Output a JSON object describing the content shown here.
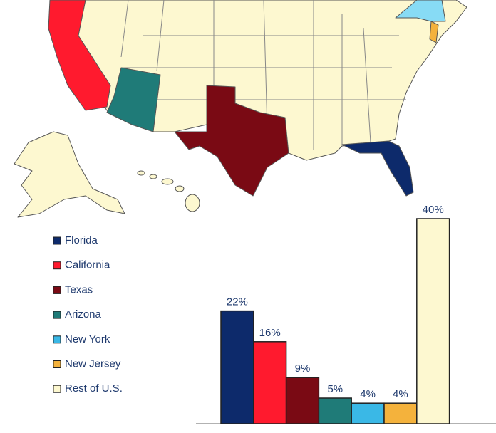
{
  "chart_data": {
    "type": "bar",
    "categories": [
      "Florida",
      "California",
      "Texas",
      "Arizona",
      "New York",
      "New Jersey",
      "Rest of U.S."
    ],
    "values": [
      22,
      16,
      9,
      5,
      4,
      4,
      40
    ],
    "value_labels": [
      "22%",
      "16%",
      "9%",
      "5%",
      "4%",
      "4%",
      "40%"
    ],
    "colors": [
      "#0d2a6b",
      "#ff1a2e",
      "#7a0a14",
      "#1f7b78",
      "#3ab8e6",
      "#f4b23c",
      "#fdf8d0"
    ]
  }
}
